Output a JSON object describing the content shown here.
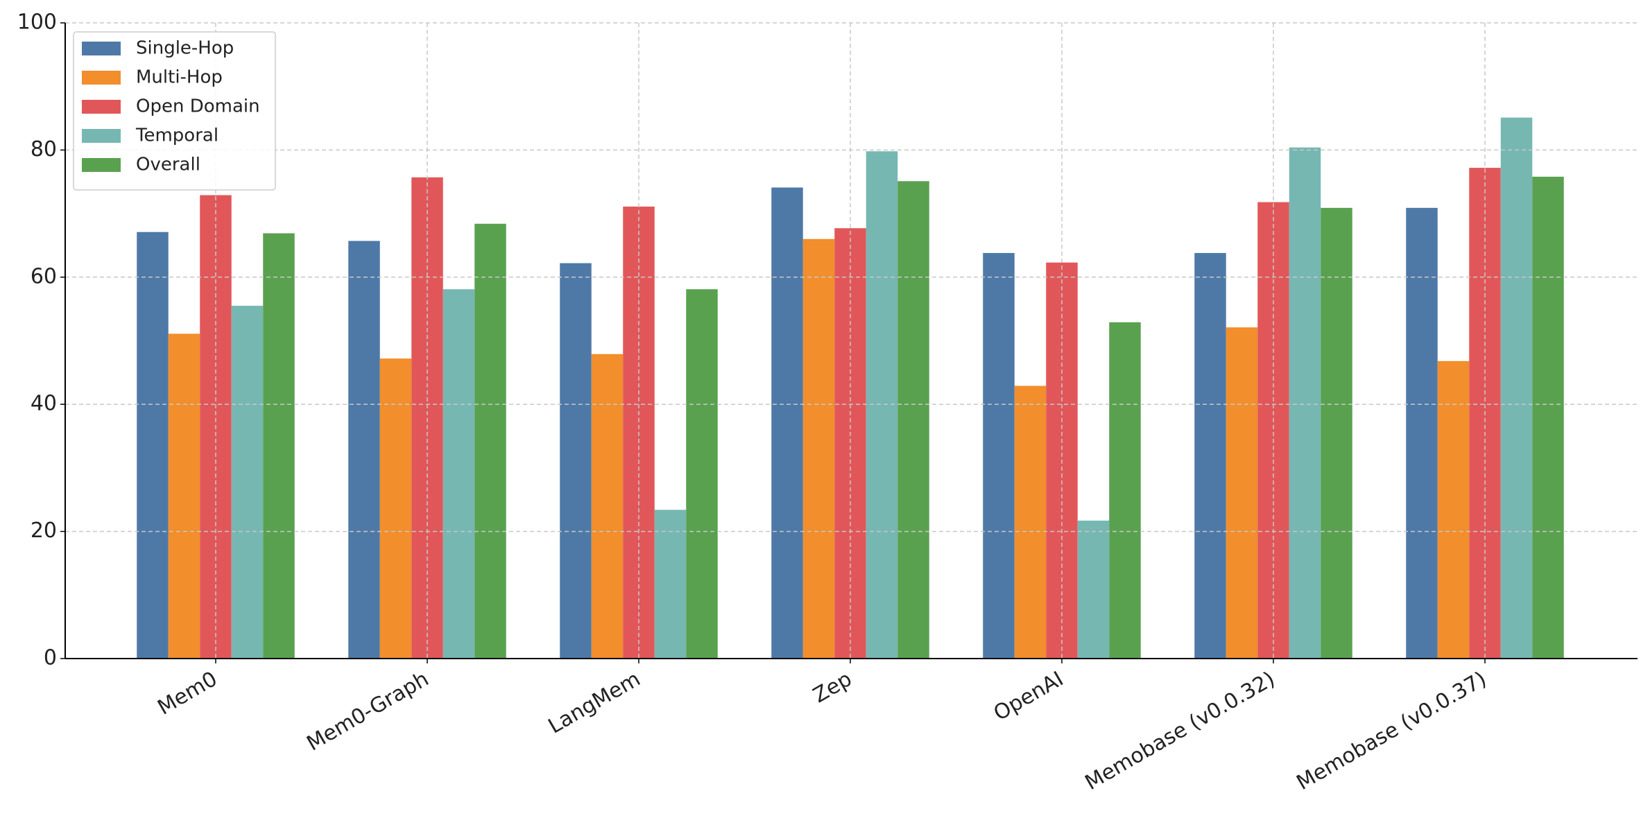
{
  "chart_data": {
    "type": "bar",
    "categories": [
      "Mem0",
      "Mem0-Graph",
      "LangMem",
      "Zep",
      "OpenAI",
      "Memobase (v0.0.32)",
      "Memobase (v0.0.37)"
    ],
    "series": [
      {
        "name": "Single-Hop",
        "color": "#4e79a7",
        "values": [
          67.1,
          65.7,
          62.2,
          74.1,
          63.8,
          63.8,
          70.9
        ]
      },
      {
        "name": "Multi-Hop",
        "color": "#f28e2b",
        "values": [
          51.1,
          47.2,
          47.9,
          66.0,
          42.9,
          52.1,
          46.8
        ]
      },
      {
        "name": "Open Domain",
        "color": "#e15759",
        "values": [
          72.9,
          75.7,
          71.1,
          67.7,
          62.3,
          71.8,
          77.2
        ]
      },
      {
        "name": "Temporal",
        "color": "#76b7b2",
        "values": [
          55.5,
          58.1,
          23.4,
          79.8,
          21.7,
          80.4,
          85.1
        ]
      },
      {
        "name": "Overall",
        "color": "#59a14f",
        "values": [
          66.9,
          68.4,
          58.1,
          75.1,
          52.9,
          70.9,
          75.8
        ]
      }
    ],
    "ylim": [
      0,
      100
    ],
    "yticks": [
      0,
      20,
      40,
      60,
      80,
      100
    ],
    "grid": true,
    "legend": "upper left"
  }
}
